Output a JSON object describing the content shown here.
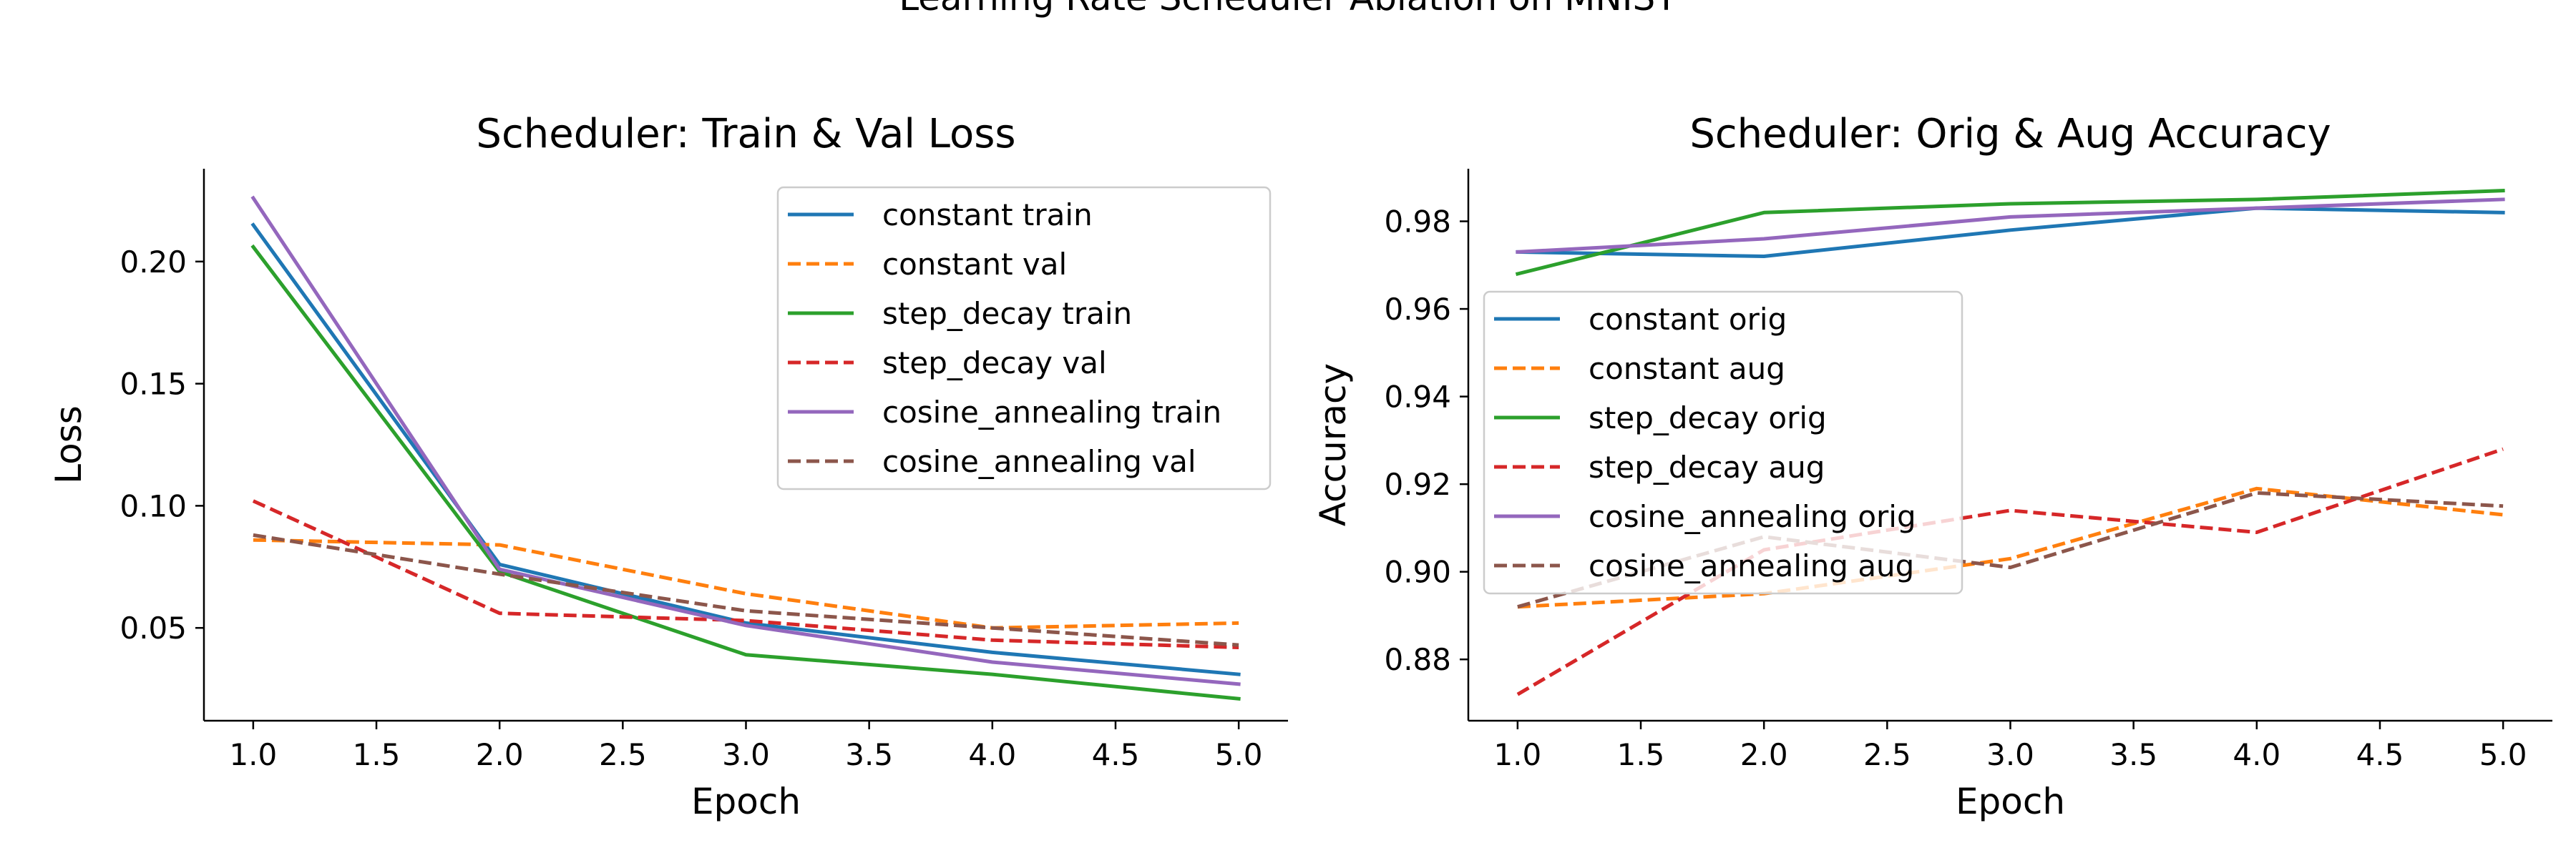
{
  "figure": {
    "suptitle": "Learning Rate Scheduler Ablation on MNIST"
  },
  "chart_data": [
    {
      "type": "line",
      "title": "Scheduler: Train & Val Loss",
      "xlabel": "Epoch",
      "ylabel": "Loss",
      "xlim": [
        0.8,
        5.2
      ],
      "ylim": [
        0.012,
        0.238
      ],
      "xticks": [
        1.0,
        1.5,
        2.0,
        2.5,
        3.0,
        3.5,
        4.0,
        4.5,
        5.0
      ],
      "yticks": [
        0.05,
        0.1,
        0.15,
        0.2
      ],
      "ytick_labels": [
        "0.05",
        "0.10",
        "0.15",
        "0.20"
      ],
      "grid": false,
      "legend_position": "upper right",
      "x": [
        1,
        2,
        3,
        4,
        5
      ],
      "series": [
        {
          "name": "constant train",
          "color": "#1f77b4",
          "dash": "solid",
          "values": [
            0.215,
            0.076,
            0.052,
            0.04,
            0.031
          ]
        },
        {
          "name": "constant val",
          "color": "#ff7f0e",
          "dash": "dashed",
          "values": [
            0.086,
            0.084,
            0.064,
            0.05,
            0.052
          ]
        },
        {
          "name": "step_decay train",
          "color": "#2ca02c",
          "dash": "solid",
          "values": [
            0.206,
            0.073,
            0.039,
            0.031,
            0.021
          ]
        },
        {
          "name": "step_decay val",
          "color": "#d62728",
          "dash": "dashed",
          "values": [
            0.102,
            0.056,
            0.053,
            0.045,
            0.042
          ]
        },
        {
          "name": "cosine_annealing train",
          "color": "#9467bd",
          "dash": "solid",
          "values": [
            0.226,
            0.074,
            0.051,
            0.036,
            0.027
          ]
        },
        {
          "name": "cosine_annealing val",
          "color": "#8c564b",
          "dash": "dashed",
          "values": [
            0.088,
            0.072,
            0.057,
            0.05,
            0.043
          ]
        }
      ]
    },
    {
      "type": "line",
      "title": "Scheduler: Orig & Aug Accuracy",
      "xlabel": "Epoch",
      "ylabel": "Accuracy",
      "xlim": [
        0.8,
        5.2
      ],
      "ylim": [
        0.866,
        0.992
      ],
      "xticks": [
        1.0,
        1.5,
        2.0,
        2.5,
        3.0,
        3.5,
        4.0,
        4.5,
        5.0
      ],
      "yticks": [
        0.88,
        0.9,
        0.92,
        0.94,
        0.96,
        0.98
      ],
      "ytick_labels": [
        "0.88",
        "0.90",
        "0.92",
        "0.94",
        "0.96",
        "0.98"
      ],
      "grid": false,
      "legend_position": "center left",
      "x": [
        1,
        2,
        3,
        4,
        5
      ],
      "series": [
        {
          "name": "constant orig",
          "color": "#1f77b4",
          "dash": "solid",
          "values": [
            0.973,
            0.972,
            0.978,
            0.983,
            0.982
          ]
        },
        {
          "name": "constant aug",
          "color": "#ff7f0e",
          "dash": "dashed",
          "values": [
            0.892,
            0.895,
            0.903,
            0.919,
            0.913
          ]
        },
        {
          "name": "step_decay orig",
          "color": "#2ca02c",
          "dash": "solid",
          "values": [
            0.968,
            0.982,
            0.984,
            0.985,
            0.987
          ]
        },
        {
          "name": "step_decay aug",
          "color": "#d62728",
          "dash": "dashed",
          "values": [
            0.872,
            0.905,
            0.914,
            0.909,
            0.928
          ]
        },
        {
          "name": "cosine_annealing orig",
          "color": "#9467bd",
          "dash": "solid",
          "values": [
            0.973,
            0.976,
            0.981,
            0.983,
            0.985
          ]
        },
        {
          "name": "cosine_annealing aug",
          "color": "#8c564b",
          "dash": "dashed",
          "values": [
            0.892,
            0.908,
            0.901,
            0.918,
            0.915
          ]
        }
      ]
    }
  ]
}
